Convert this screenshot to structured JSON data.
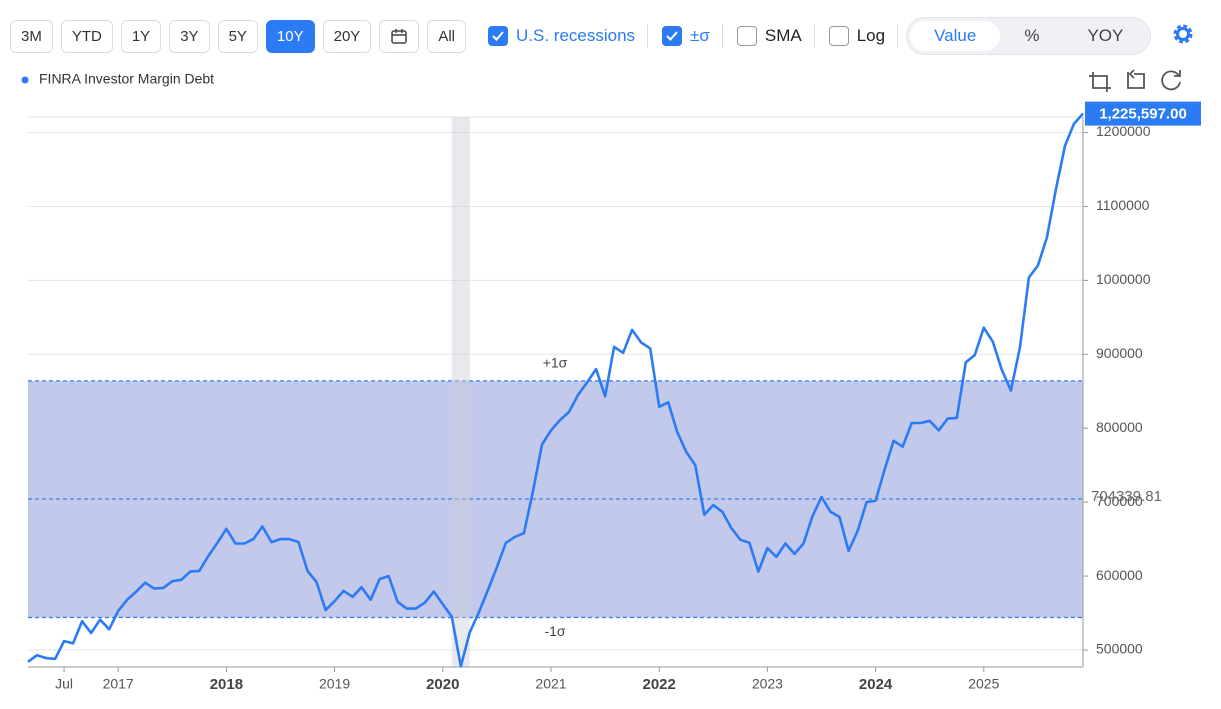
{
  "toolbar": {
    "ranges": [
      "3M",
      "YTD",
      "1Y",
      "3Y",
      "5Y",
      "10Y",
      "20Y",
      "All"
    ],
    "active_range": "10Y",
    "toggles": [
      {
        "label": "U.S. recessions",
        "checked": true
      },
      {
        "label": "±σ",
        "checked": true
      },
      {
        "label": "SMA",
        "checked": false
      },
      {
        "label": "Log",
        "checked": false
      }
    ],
    "modes": [
      "Value",
      "%",
      "YOY"
    ],
    "active_mode": "Value"
  },
  "chart_data": {
    "type": "line",
    "log_scale": false,
    "grid": true,
    "x": [
      "2016-03",
      "2016-04",
      "2016-05",
      "2016-06",
      "2016-07",
      "2016-08",
      "2016-09",
      "2016-10",
      "2016-11",
      "2016-12",
      "2017-01",
      "2017-02",
      "2017-03",
      "2017-04",
      "2017-05",
      "2017-06",
      "2017-07",
      "2017-08",
      "2017-09",
      "2017-10",
      "2017-11",
      "2017-12",
      "2018-01",
      "2018-02",
      "2018-03",
      "2018-04",
      "2018-05",
      "2018-06",
      "2018-07",
      "2018-08",
      "2018-09",
      "2018-10",
      "2018-11",
      "2018-12",
      "2019-01",
      "2019-02",
      "2019-03",
      "2019-04",
      "2019-05",
      "2019-06",
      "2019-07",
      "2019-08",
      "2019-09",
      "2019-10",
      "2019-11",
      "2019-12",
      "2020-01",
      "2020-02",
      "2020-03",
      "2020-04",
      "2020-05",
      "2020-06",
      "2020-07",
      "2020-08",
      "2020-09",
      "2020-10",
      "2020-11",
      "2020-12",
      "2021-01",
      "2021-02",
      "2021-03",
      "2021-04",
      "2021-05",
      "2021-06",
      "2021-07",
      "2021-08",
      "2021-09",
      "2021-10",
      "2021-11",
      "2021-12",
      "2022-01",
      "2022-02",
      "2022-03",
      "2022-04",
      "2022-05",
      "2022-06",
      "2022-07",
      "2022-08",
      "2022-09",
      "2022-10",
      "2022-11",
      "2022-12",
      "2023-01",
      "2023-02",
      "2023-03",
      "2023-04",
      "2023-05",
      "2023-06",
      "2023-07",
      "2023-08",
      "2023-09",
      "2023-10",
      "2023-11",
      "2023-12",
      "2024-01",
      "2024-02",
      "2024-03",
      "2024-04",
      "2024-05",
      "2024-06",
      "2024-07",
      "2024-08",
      "2024-09",
      "2024-10",
      "2024-11",
      "2024-12",
      "2025-01",
      "2025-02",
      "2025-03",
      "2025-04",
      "2025-05",
      "2025-06",
      "2025-07",
      "2025-08",
      "2025-09",
      "2025-10",
      "2025-11",
      "2025-12"
    ],
    "series": [
      {
        "name": "FINRA Investor Margin Debt",
        "color": "#2b7bf5",
        "last_label": "1,225,597.00",
        "values": [
          484000,
          493000,
          489000,
          488000,
          512000,
          509000,
          539000,
          523000,
          541000,
          528000,
          553000,
          568000,
          579000,
          591000,
          583000,
          584000,
          593000,
          595000,
          606000,
          607000,
          627000,
          645000,
          664000,
          644000,
          644000,
          650000,
          667000,
          646000,
          650000,
          650000,
          646000,
          607000,
          592000,
          554000,
          566000,
          580000,
          572000,
          585000,
          568000,
          596000,
          600000,
          565000,
          556000,
          556000,
          564000,
          579000,
          562000,
          545000,
          478000,
          524000,
          551000,
          581000,
          612000,
          645000,
          653000,
          658000,
          715000,
          778000,
          797000,
          811000,
          822000,
          845000,
          862000,
          880000,
          843000,
          910000,
          902000,
          933000,
          916000,
          908000,
          829000,
          835000,
          795000,
          768000,
          750000,
          683000,
          696000,
          687000,
          665000,
          649000,
          645000,
          606000,
          638000,
          626000,
          644000,
          630000,
          644000,
          681000,
          707000,
          687000,
          680000,
          634000,
          661000,
          700000,
          702000,
          744000,
          783000,
          775000,
          807000,
          807000,
          810000,
          797000,
          813000,
          814000,
          889000,
          899000,
          936000,
          917000,
          879000,
          851000,
          909000,
          1004000,
          1020000,
          1058000,
          1123000,
          1182000,
          1212000,
          1225597
        ]
      }
    ],
    "xlim": [
      "2016-03",
      "2025-12"
    ],
    "xticks": [
      {
        "value": "2016-07",
        "label": "Jul"
      },
      {
        "value": "2017-01",
        "label": "2017"
      },
      {
        "value": "2018-01",
        "label": "2018"
      },
      {
        "value": "2019-01",
        "label": "2019"
      },
      {
        "value": "2020-01",
        "label": "2020"
      },
      {
        "value": "2021-01",
        "label": "2021"
      },
      {
        "value": "2022-01",
        "label": "2022"
      },
      {
        "value": "2023-01",
        "label": "2023"
      },
      {
        "value": "2024-01",
        "label": "2024"
      },
      {
        "value": "2025-01",
        "label": "2025"
      }
    ],
    "ylim": [
      477000,
      1221000
    ],
    "yticks": [
      500000,
      600000,
      700000,
      800000,
      900000,
      1000000,
      1100000,
      1200000
    ],
    "recessions": [
      {
        "start": "2020-02",
        "end": "2020-04"
      }
    ],
    "mean": 704339.81,
    "sigma_upper": 864000,
    "sigma_lower": 544000,
    "sigma_upper_label": "+1σ",
    "sigma_lower_label": "-1σ"
  }
}
